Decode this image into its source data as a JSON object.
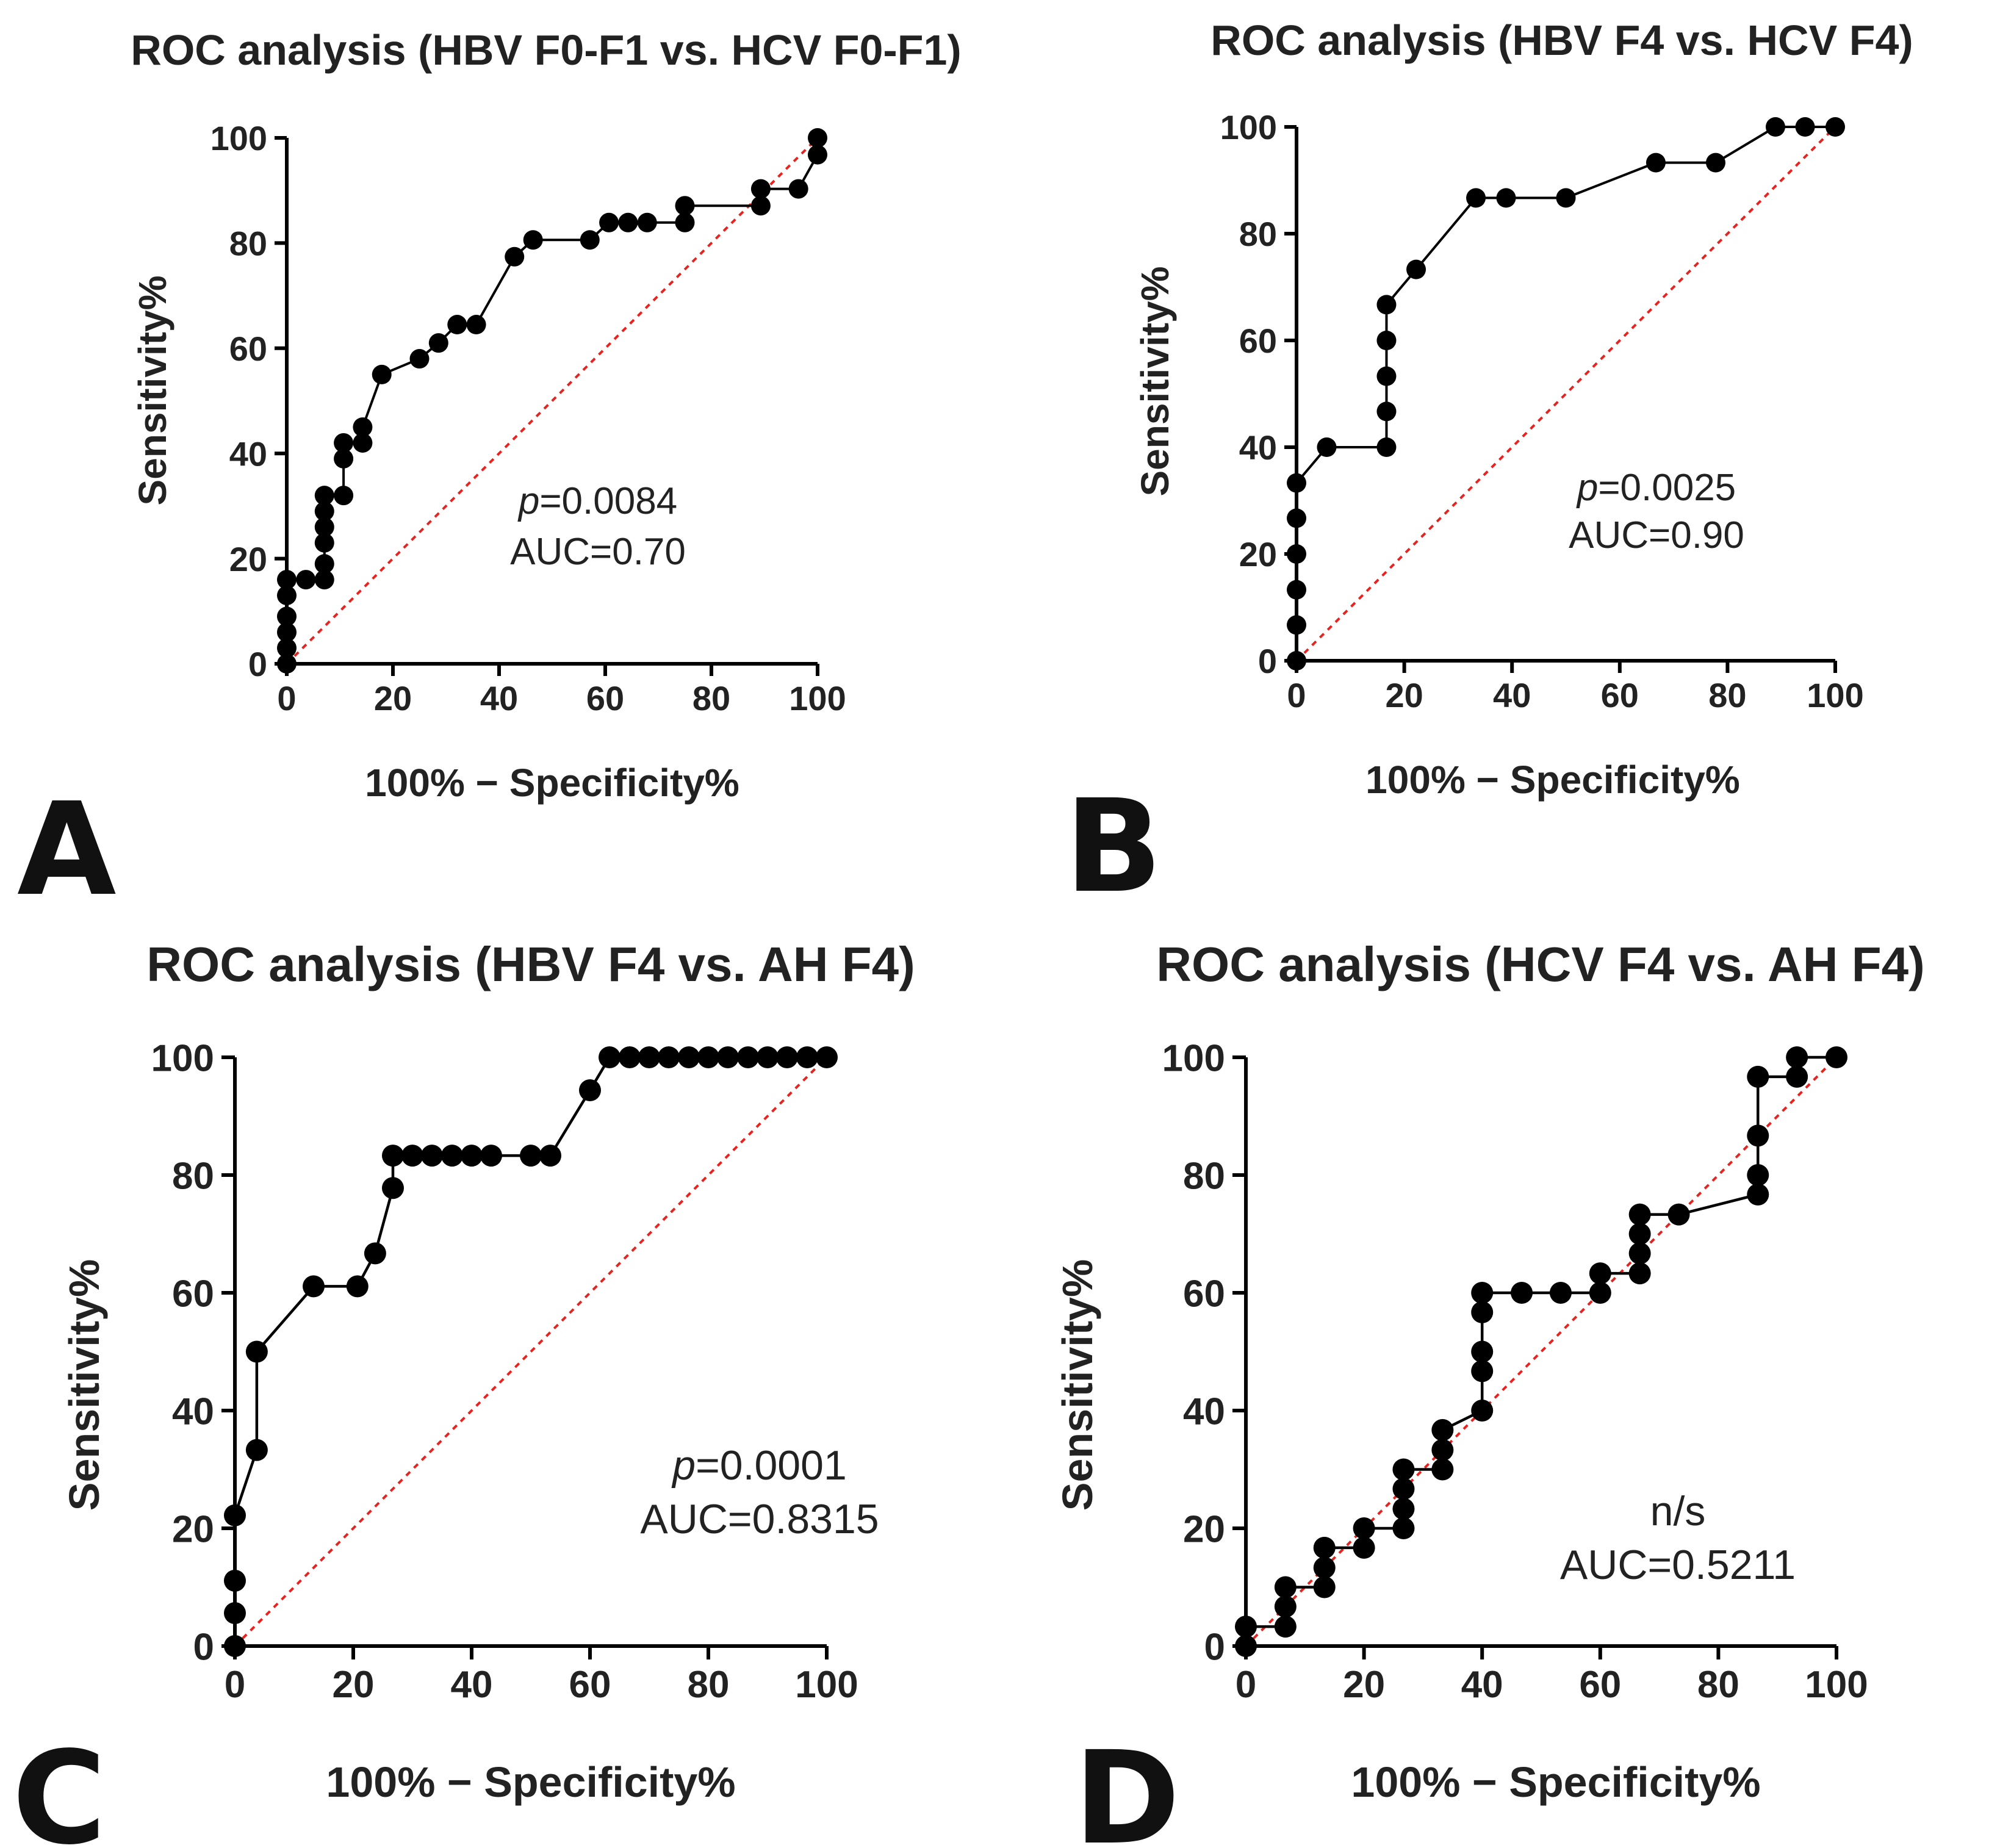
{
  "colors": {
    "curve": "#000000",
    "points": "#000000",
    "axis": "#000000",
    "diagonal": "#e8231f",
    "text": "#222222"
  },
  "chart_data": [
    {
      "panel": "A",
      "type": "scatter",
      "title": "ROC analysis  (HBV F0-F1 vs. HCV F0-F1)",
      "xlabel": "100% − Specificity%",
      "ylabel": "Sensitivity%",
      "xlim": [
        0,
        100
      ],
      "ylim": [
        0,
        100
      ],
      "xticks": [
        0,
        20,
        40,
        60,
        80,
        100
      ],
      "yticks": [
        0,
        20,
        40,
        60,
        80,
        100
      ],
      "xtick_labels": [
        "0",
        "20",
        "40",
        "60",
        "80",
        "100"
      ],
      "ytick_labels": [
        "0",
        "20",
        "40",
        "60",
        "80",
        "100"
      ],
      "annotation_p_label": "p",
      "annotation_p_value": "=0.0084",
      "annotation_auc": "AUC=0.70",
      "reference_line": "diagonal, dotted",
      "points": [
        [
          0,
          0
        ],
        [
          0,
          3
        ],
        [
          0,
          6
        ],
        [
          0,
          9
        ],
        [
          0,
          13
        ],
        [
          0,
          16
        ],
        [
          3.6,
          16
        ],
        [
          7.1,
          16
        ],
        [
          7.1,
          19
        ],
        [
          7.1,
          23
        ],
        [
          7.1,
          26
        ],
        [
          7.1,
          29
        ],
        [
          7.1,
          32
        ],
        [
          10.7,
          32
        ],
        [
          10.7,
          39
        ],
        [
          10.7,
          42
        ],
        [
          14.3,
          42
        ],
        [
          14.3,
          45
        ],
        [
          17.9,
          55
        ],
        [
          25,
          58
        ],
        [
          28.6,
          61
        ],
        [
          32.1,
          64.5
        ],
        [
          35.7,
          64.5
        ],
        [
          42.9,
          77.4
        ],
        [
          46.4,
          80.6
        ],
        [
          57.1,
          80.6
        ],
        [
          60.7,
          83.9
        ],
        [
          64.3,
          83.9
        ],
        [
          67.9,
          83.9
        ],
        [
          75,
          83.9
        ],
        [
          75,
          87.1
        ],
        [
          89.3,
          87.1
        ],
        [
          89.3,
          90.3
        ],
        [
          96.4,
          90.3
        ],
        [
          100,
          96.8
        ],
        [
          100,
          100
        ]
      ]
    },
    {
      "panel": "B",
      "type": "scatter",
      "title": "ROC analysis (HBV F4 vs. HCV F4)",
      "xlabel": "100% − Specificity%",
      "ylabel": "Sensitivity%",
      "xlim": [
        0,
        100
      ],
      "ylim": [
        0,
        100
      ],
      "xticks": [
        0,
        20,
        40,
        60,
        80,
        100
      ],
      "yticks": [
        0,
        20,
        40,
        60,
        80,
        100
      ],
      "xtick_labels": [
        "0",
        "20",
        "40",
        "60",
        "80",
        "100"
      ],
      "ytick_labels": [
        "0",
        "20",
        "40",
        "60",
        "80",
        "100"
      ],
      "annotation_p_label": "p",
      "annotation_p_value": "=0.0025",
      "annotation_auc": "AUC=0.90",
      "reference_line": "diagonal, dotted",
      "points": [
        [
          0,
          0
        ],
        [
          0,
          6.7
        ],
        [
          0,
          13.3
        ],
        [
          0,
          20
        ],
        [
          0,
          26.7
        ],
        [
          0,
          33.3
        ],
        [
          5.6,
          40
        ],
        [
          16.7,
          40
        ],
        [
          16.7,
          46.7
        ],
        [
          16.7,
          53.3
        ],
        [
          16.7,
          60
        ],
        [
          16.7,
          66.7
        ],
        [
          22.2,
          73.3
        ],
        [
          33.3,
          86.7
        ],
        [
          38.9,
          86.7
        ],
        [
          50,
          86.7
        ],
        [
          66.7,
          93.3
        ],
        [
          77.8,
          93.3
        ],
        [
          88.9,
          100
        ],
        [
          94.4,
          100
        ],
        [
          100,
          100
        ]
      ]
    },
    {
      "panel": "C",
      "type": "scatter",
      "title": "ROC analysis (HBV F4 vs. AH F4)",
      "xlabel": "100% − Specificity%",
      "ylabel": "Sensitivity%",
      "xlim": [
        0,
        100
      ],
      "ylim": [
        0,
        100
      ],
      "xticks": [
        0,
        20,
        40,
        60,
        80,
        100
      ],
      "yticks": [
        0,
        20,
        40,
        60,
        80,
        100
      ],
      "xtick_labels": [
        "0",
        "20",
        "40",
        "60",
        "80",
        "100"
      ],
      "ytick_labels": [
        "0",
        "20",
        "40",
        "60",
        "80",
        "100"
      ],
      "annotation_p_label": "p",
      "annotation_p_value": "=0.0001",
      "annotation_auc": "AUC=0.8315",
      "reference_line": "diagonal, dotted",
      "points": [
        [
          0,
          0
        ],
        [
          0,
          5.6
        ],
        [
          0,
          11.1
        ],
        [
          0,
          22.2
        ],
        [
          3.7,
          33.3
        ],
        [
          3.7,
          50
        ],
        [
          13.3,
          61.1
        ],
        [
          20.7,
          61.1
        ],
        [
          23.7,
          66.7
        ],
        [
          26.7,
          77.8
        ],
        [
          26.7,
          83.3
        ],
        [
          30,
          83.3
        ],
        [
          33.3,
          83.3
        ],
        [
          36.7,
          83.3
        ],
        [
          40,
          83.3
        ],
        [
          43.3,
          83.3
        ],
        [
          50,
          83.3
        ],
        [
          53.3,
          83.3
        ],
        [
          60,
          94.4
        ],
        [
          63.3,
          100
        ],
        [
          66.7,
          100
        ],
        [
          70,
          100
        ],
        [
          73.3,
          100
        ],
        [
          76.7,
          100
        ],
        [
          80,
          100
        ],
        [
          83.3,
          100
        ],
        [
          86.7,
          100
        ],
        [
          90,
          100
        ],
        [
          93.3,
          100
        ],
        [
          96.7,
          100
        ],
        [
          100,
          100
        ]
      ]
    },
    {
      "panel": "D",
      "type": "scatter",
      "title": "ROC analysis (HCV F4 vs. AH F4)",
      "xlabel": "100% − Specificity%",
      "ylabel": "Sensitivity%",
      "xlim": [
        0,
        100
      ],
      "ylim": [
        0,
        100
      ],
      "xticks": [
        0,
        20,
        40,
        60,
        80,
        100
      ],
      "yticks": [
        0,
        20,
        40,
        60,
        80,
        100
      ],
      "xtick_labels": [
        "0",
        "20",
        "40",
        "60",
        "80",
        "100"
      ],
      "ytick_labels": [
        "0",
        "20",
        "40",
        "60",
        "80",
        "100"
      ],
      "annotation_p_label": "",
      "annotation_p_value": "n/s",
      "annotation_auc": "AUC=0.5211",
      "reference_line": "diagonal, dotted",
      "points": [
        [
          0,
          0
        ],
        [
          0,
          3.3
        ],
        [
          6.7,
          3.3
        ],
        [
          6.7,
          6.7
        ],
        [
          6.7,
          10
        ],
        [
          13.3,
          10
        ],
        [
          13.3,
          13.3
        ],
        [
          13.3,
          16.7
        ],
        [
          20,
          16.7
        ],
        [
          20,
          20
        ],
        [
          26.7,
          20
        ],
        [
          26.7,
          23.3
        ],
        [
          26.7,
          26.7
        ],
        [
          26.7,
          30
        ],
        [
          33.3,
          30
        ],
        [
          33.3,
          33.3
        ],
        [
          33.3,
          36.7
        ],
        [
          40,
          40
        ],
        [
          40,
          46.7
        ],
        [
          40,
          50
        ],
        [
          40,
          56.7
        ],
        [
          40,
          60
        ],
        [
          46.7,
          60
        ],
        [
          53.3,
          60
        ],
        [
          60,
          60
        ],
        [
          60,
          63.3
        ],
        [
          66.7,
          63.3
        ],
        [
          66.7,
          66.7
        ],
        [
          66.7,
          70
        ],
        [
          66.7,
          73.3
        ],
        [
          73.3,
          73.3
        ],
        [
          86.7,
          76.7
        ],
        [
          86.7,
          80
        ],
        [
          86.7,
          86.7
        ],
        [
          86.7,
          96.7
        ],
        [
          93.3,
          96.7
        ],
        [
          93.3,
          100
        ],
        [
          100,
          100
        ]
      ]
    }
  ]
}
